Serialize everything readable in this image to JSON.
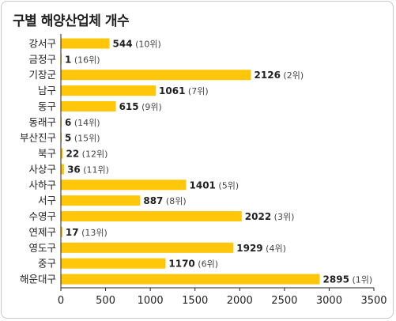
{
  "chart_data": {
    "type": "bar",
    "orientation": "horizontal",
    "title": "구별 해양산업체 개수",
    "categories": [
      "강서구",
      "금정구",
      "기장군",
      "남구",
      "동구",
      "동래구",
      "부산진구",
      "북구",
      "사상구",
      "사하구",
      "서구",
      "수영구",
      "연제구",
      "영도구",
      "중구",
      "해운대구"
    ],
    "values": [
      544,
      1,
      2126,
      1061,
      615,
      6,
      5,
      22,
      36,
      1401,
      887,
      2022,
      17,
      1929,
      1170,
      2895
    ],
    "ranks": [
      "(10위)",
      "(16위)",
      "(2위)",
      "(7위)",
      "(9위)",
      "(14위)",
      "(15위)",
      "(12위)",
      "(11위)",
      "(5위)",
      "(8위)",
      "(3위)",
      "(13위)",
      "(4위)",
      "(6위)",
      "(1위)"
    ],
    "xlim": [
      0,
      3500
    ],
    "xticks": [
      0,
      500,
      1000,
      1500,
      2000,
      2500,
      3000,
      3500
    ],
    "bar_color": "#FFC60A",
    "grid": false,
    "legend": "none"
  }
}
